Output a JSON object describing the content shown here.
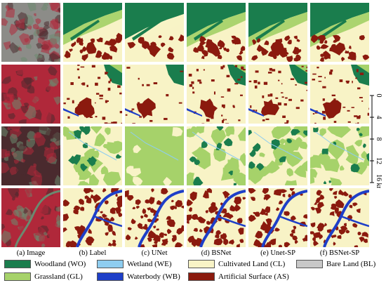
{
  "columns": [
    {
      "label": "(a) Image"
    },
    {
      "label": "(b) Label"
    },
    {
      "label": "(c) UNet"
    },
    {
      "label": "(d) BSNet"
    },
    {
      "label": "(e) Unet-SP"
    },
    {
      "label": "(f) BSNet-SP"
    }
  ],
  "scale_bar": {
    "ticks": [
      "0",
      "4",
      "8",
      "12",
      "16 km"
    ]
  },
  "legend": [
    {
      "label": "Woodland (WO)",
      "color": "#1a7d4d"
    },
    {
      "label": "Grassland (GL)",
      "color": "#a6d26a"
    },
    {
      "label": "Wetland (WE)",
      "color": "#8ecdf0"
    },
    {
      "label": "Waterbody (WB)",
      "color": "#1e3fc8"
    },
    {
      "label": "Cultivated Land (CL)",
      "color": "#f8f3c6"
    },
    {
      "label": "Artificial Surface (AS)",
      "color": "#8b1a0e"
    },
    {
      "label": "Bare Land (BL)",
      "color": "#c8c8c8"
    }
  ],
  "colors": {
    "image_red": "#b0283a",
    "image_dark": "#4a2a2e",
    "image_green": "#6b8a70",
    "image_gray": "#8c8c88"
  }
}
